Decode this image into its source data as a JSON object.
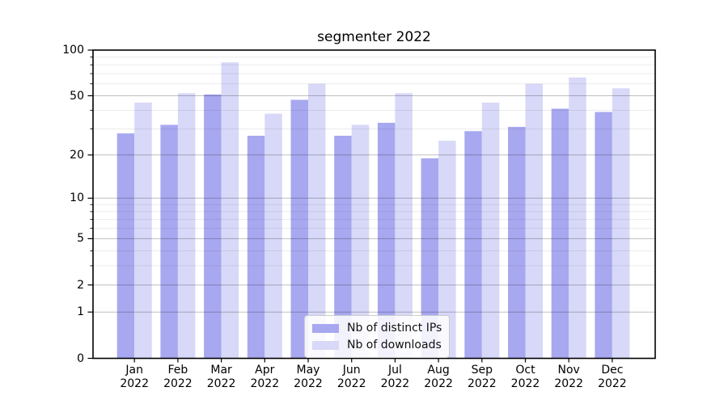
{
  "title": "segmenter 2022",
  "chart_data": {
    "type": "bar",
    "title": "segmenter 2022",
    "categories": [
      "Jan",
      "Feb",
      "Mar",
      "Apr",
      "May",
      "Jun",
      "Jul",
      "Aug",
      "Sep",
      "Oct",
      "Nov",
      "Dec"
    ],
    "category_year": "2022",
    "series": [
      {
        "name": "Nb of distinct IPs",
        "color": "#a8a8f0",
        "values": [
          28,
          32,
          51,
          27,
          47,
          27,
          33,
          19,
          29,
          31,
          41,
          39
        ]
      },
      {
        "name": "Nb of downloads",
        "color": "#d8d8f8",
        "values": [
          45,
          52,
          83,
          38,
          60,
          32,
          52,
          25,
          45,
          60,
          66,
          56
        ]
      }
    ],
    "xlabel": "",
    "ylabel": "",
    "yscale": "symlog (log1p)",
    "ylim": [
      0,
      100
    ],
    "yticks": [
      100,
      50,
      20,
      10,
      5,
      2,
      1,
      0
    ],
    "minor_yticks": [
      3,
      4,
      6,
      7,
      8,
      9,
      30,
      40,
      60,
      70,
      80,
      90
    ],
    "grid": "on",
    "legend_position": "lower center"
  }
}
